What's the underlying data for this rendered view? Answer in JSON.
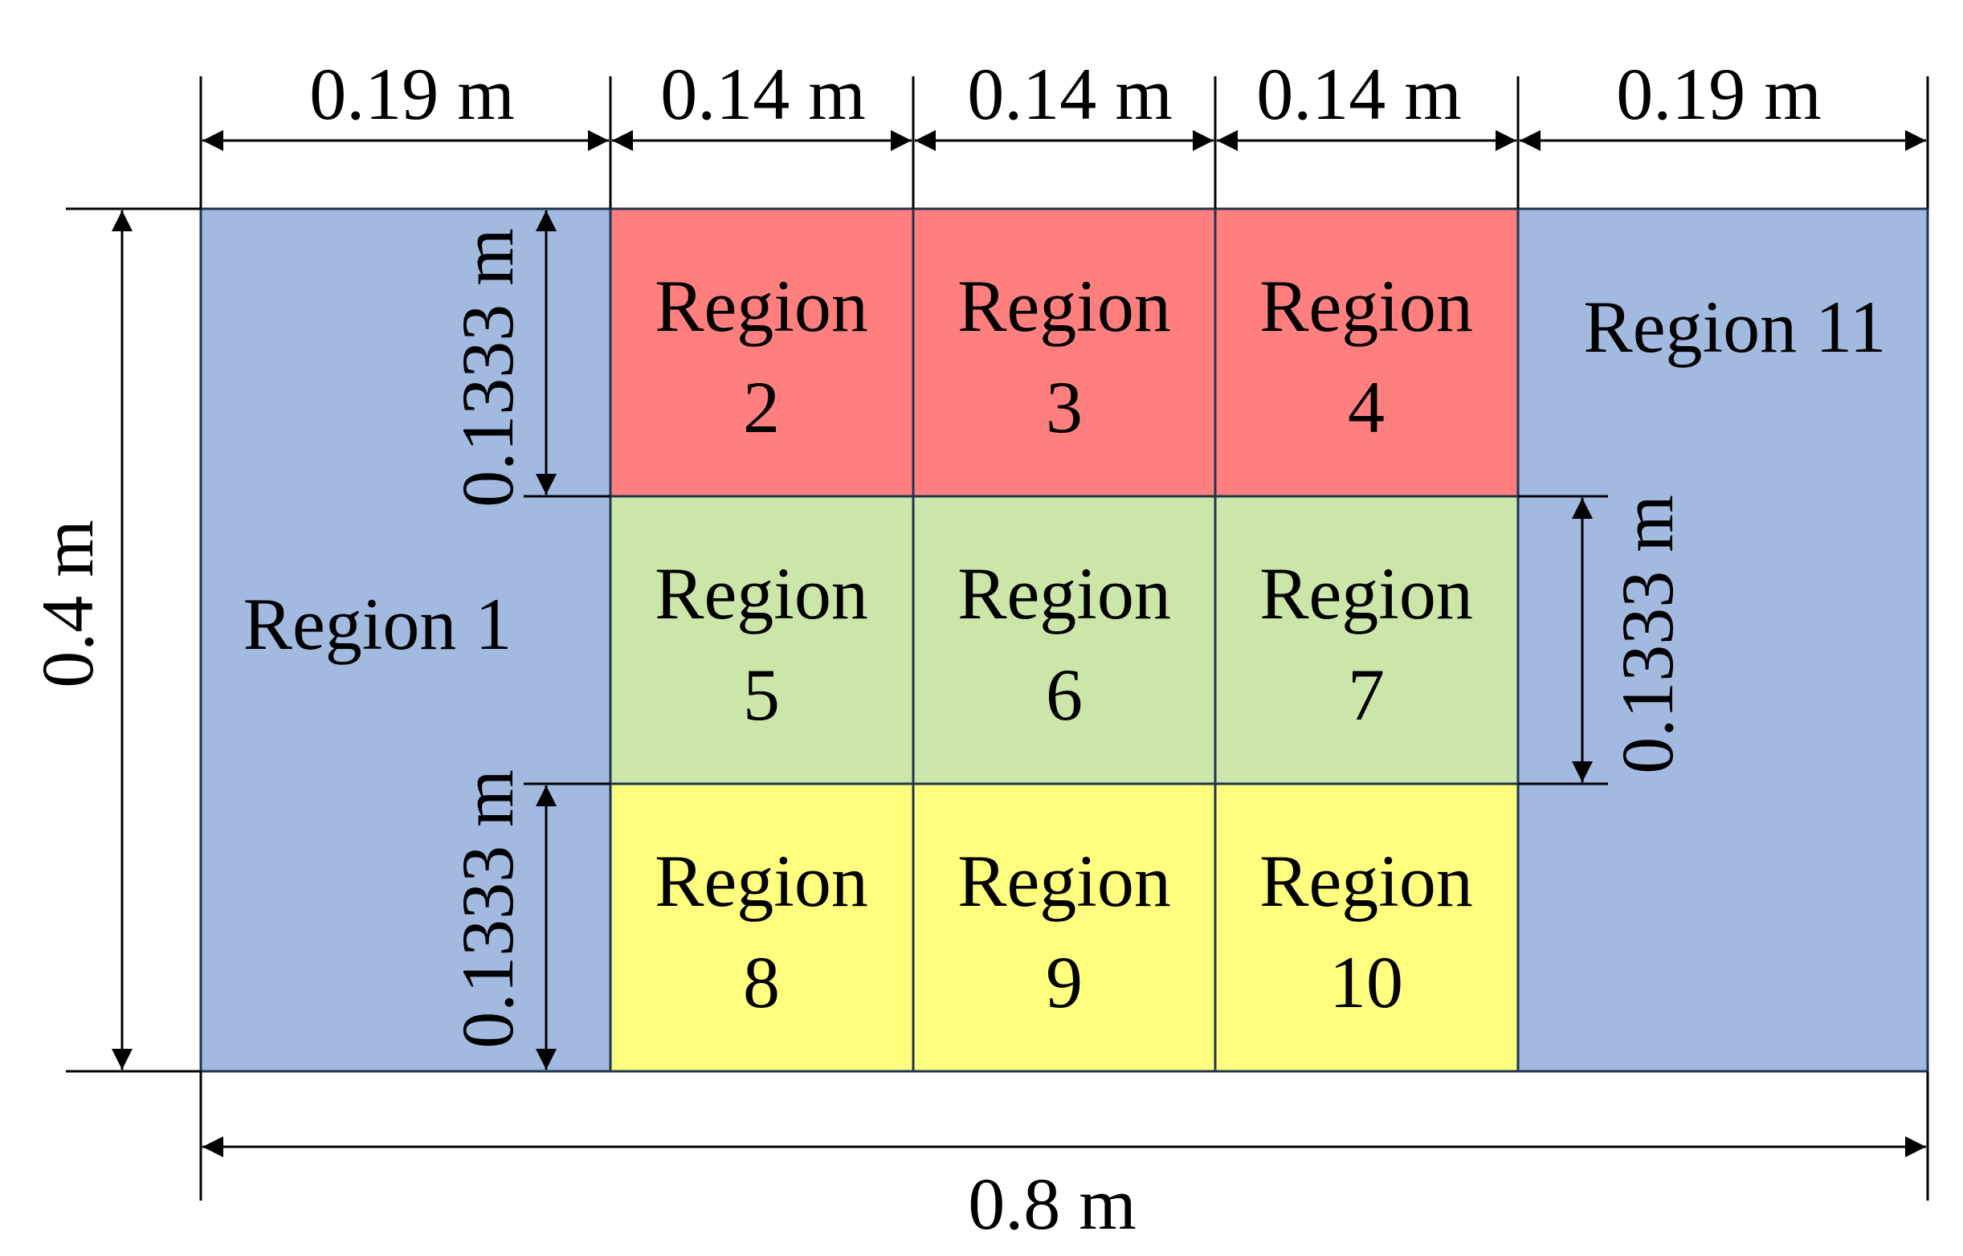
{
  "colors": {
    "blue": "#a2b9e0",
    "red": "#fe7f7e",
    "green": "#cce6aa",
    "yellow": "#fefe7f",
    "line": "#000000"
  },
  "regions": {
    "r1": [
      "Region 1"
    ],
    "r2": [
      "Region",
      "2"
    ],
    "r3": [
      "Region",
      "3"
    ],
    "r4": [
      "Region",
      "4"
    ],
    "r5": [
      "Region",
      "5"
    ],
    "r6": [
      "Region",
      "6"
    ],
    "r7": [
      "Region",
      "7"
    ],
    "r8": [
      "Region",
      "8"
    ],
    "r9": [
      "Region",
      "9"
    ],
    "r10": [
      "Region",
      "10"
    ],
    "r11": [
      "Region 11"
    ]
  },
  "dimensions": {
    "top": [
      "0.19 m",
      "0.14 m",
      "0.14 m",
      "0.14 m",
      "0.19 m"
    ],
    "bottom": "0.8 m",
    "left": "0.4 m",
    "row_height_upper_left": "0.1333 m",
    "row_height_lower_left": "0.1333 m",
    "row_height_right": "0.1333 m"
  }
}
